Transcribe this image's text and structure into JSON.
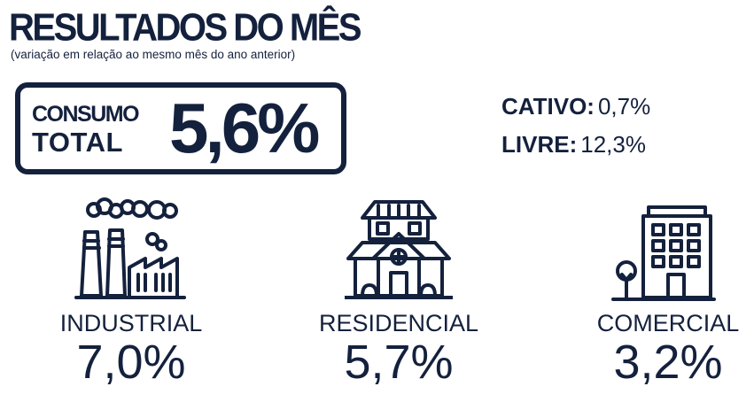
{
  "header": {
    "title": "RESULTADOS DO MÊS",
    "subtitle": "(variação em relação ao mesmo mês do ano anterior)"
  },
  "total": {
    "label_line1": "CONSUMO",
    "label_line2": "TOTAL",
    "value": "5,6%"
  },
  "markets": [
    {
      "label": "CATIVO:",
      "value": "0,7%"
    },
    {
      "label": "LIVRE:",
      "value": "12,3%"
    }
  ],
  "segments": [
    {
      "name": "INDUSTRIAL",
      "value": "7,0%",
      "icon": "factory-icon"
    },
    {
      "name": "RESIDENCIAL",
      "value": "5,7%",
      "icon": "house-icon"
    },
    {
      "name": "COMERCIAL",
      "value": "3,2%",
      "icon": "building-icon"
    }
  ],
  "colors": {
    "primary": "#14213d",
    "background": "#ffffff"
  }
}
